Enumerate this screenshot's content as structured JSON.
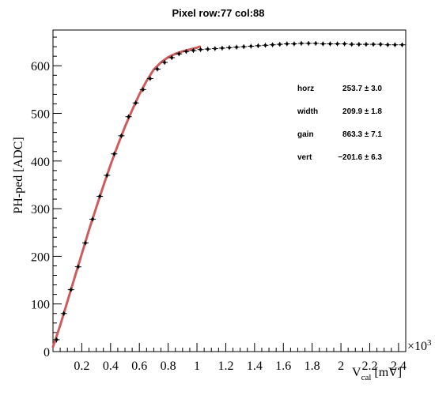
{
  "chart_data": {
    "type": "scatter",
    "title": "Pixel row:77 col:88",
    "xlabel_main": "V",
    "xlabel_sub": "cal",
    "xlabel_unit": " [mV]",
    "ylabel": "PH-ped [ADC]",
    "x_multiplier_label": "×10",
    "x_multiplier_exp": "3",
    "xlim": [
      0,
      2.45
    ],
    "ylim": [
      0,
      675
    ],
    "xticks": [
      0.2,
      0.4,
      0.6,
      0.8,
      1,
      1.2,
      1.4,
      1.6,
      1.8,
      2,
      2.2,
      2.4
    ],
    "xtick_labels": [
      "0.2",
      "0.4",
      "0.6",
      "0.8",
      "1",
      "1.2",
      "1.4",
      "1.6",
      "1.8",
      "2",
      "2.2",
      "2.4"
    ],
    "yticks": [
      0,
      100,
      200,
      300,
      400,
      500,
      600
    ],
    "ytick_labels": [
      "0",
      "100",
      "200",
      "300",
      "400",
      "500",
      "600"
    ],
    "series": [
      {
        "kind": "data points",
        "x": [
          0.025,
          0.075,
          0.125,
          0.175,
          0.225,
          0.275,
          0.325,
          0.375,
          0.425,
          0.475,
          0.525,
          0.575,
          0.625,
          0.675,
          0.725,
          0.775,
          0.825,
          0.875,
          0.925,
          0.975,
          1.025,
          1.075,
          1.125,
          1.175,
          1.225,
          1.275,
          1.325,
          1.375,
          1.425,
          1.475,
          1.525,
          1.575,
          1.625,
          1.675,
          1.725,
          1.775,
          1.825,
          1.875,
          1.925,
          1.975,
          2.025,
          2.075,
          2.125,
          2.175,
          2.225,
          2.275,
          2.325,
          2.375,
          2.425
        ],
        "y": [
          25,
          80,
          130,
          178,
          228,
          278,
          326,
          370,
          415,
          453,
          493,
          522,
          550,
          573,
          593,
          607,
          617,
          625,
          630,
          632,
          634,
          635,
          636,
          637,
          638,
          639,
          640,
          641,
          642,
          643,
          644,
          645,
          646,
          646,
          647,
          647,
          647,
          646,
          646,
          646,
          646,
          645,
          645,
          645,
          645,
          645,
          644,
          644,
          644
        ]
      },
      {
        "kind": "fit curve",
        "x": [
          0.0,
          0.05,
          0.1,
          0.15,
          0.2,
          0.25,
          0.3,
          0.35,
          0.4,
          0.45,
          0.5,
          0.55,
          0.6,
          0.65,
          0.7,
          0.75,
          0.8,
          0.85,
          0.9,
          0.95,
          1.0,
          1.02
        ],
        "y": [
          10,
          55,
          105,
          155,
          205,
          255,
          302,
          348,
          392,
          433,
          472,
          507,
          540,
          568,
          592,
          607,
          618,
          625,
          630,
          634,
          638,
          640
        ]
      }
    ],
    "fit_stats": [
      {
        "name": "horz",
        "value": "253.7",
        "error": "3.0"
      },
      {
        "name": "width",
        "value": "209.9",
        "error": "1.8"
      },
      {
        "name": "gain",
        "value": "863.3",
        "error": "7.1"
      },
      {
        "name": "vert",
        "value": "−201.6",
        "error": "6.3"
      }
    ],
    "pm_symbol": "±",
    "colors": {
      "points": "#000000",
      "fit": "#cd5c5c",
      "axes": "#000000"
    }
  }
}
